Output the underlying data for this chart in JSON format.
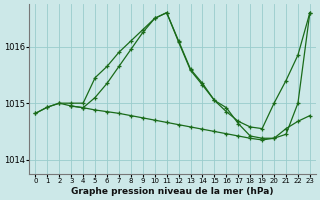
{
  "xlabel": "Graphe pression niveau de la mer (hPa)",
  "xlim": [
    -0.5,
    23.5
  ],
  "ylim": [
    1013.75,
    1016.75
  ],
  "yticks": [
    1014,
    1015,
    1016
  ],
  "xticks": [
    0,
    1,
    2,
    3,
    4,
    5,
    6,
    7,
    8,
    9,
    10,
    11,
    12,
    13,
    14,
    15,
    16,
    17,
    18,
    19,
    20,
    21,
    22,
    23
  ],
  "bg_color": "#cce8e8",
  "grid_color": "#99cccc",
  "line_color": "#1a6b1a",
  "line1_x": [
    0,
    1,
    2,
    3,
    4,
    5,
    6,
    7,
    8,
    9,
    10,
    11,
    12,
    13,
    14,
    15,
    16,
    17,
    18,
    19,
    20,
    21,
    22,
    23
  ],
  "line1_y": [
    1014.82,
    1014.93,
    1015.0,
    1015.0,
    1015.0,
    1015.45,
    1015.65,
    1015.9,
    1016.1,
    1016.3,
    1016.5,
    1016.6,
    1016.1,
    1015.6,
    1015.35,
    1015.05,
    1014.85,
    1014.68,
    1014.58,
    1014.55,
    1015.0,
    1015.4,
    1015.85,
    1016.6
  ],
  "line2_x": [
    0,
    1,
    2,
    3,
    4,
    5,
    6,
    7,
    8,
    9,
    10,
    11,
    12,
    13,
    14,
    15,
    16,
    17,
    18,
    19,
    20,
    21,
    22,
    23
  ],
  "line2_y": [
    1014.82,
    1014.93,
    1015.0,
    1014.95,
    1014.92,
    1014.88,
    1014.85,
    1014.82,
    1014.78,
    1014.74,
    1014.7,
    1014.66,
    1014.62,
    1014.58,
    1014.54,
    1014.5,
    1014.46,
    1014.42,
    1014.38,
    1014.35,
    1014.38,
    1014.55,
    1014.68,
    1014.78
  ],
  "line3_x": [
    3,
    4,
    5,
    6,
    7,
    8,
    9,
    10,
    11,
    12,
    13,
    14,
    15,
    16,
    17,
    18,
    19,
    20,
    21,
    22,
    23
  ],
  "line3_y": [
    1014.95,
    1014.92,
    1015.1,
    1015.35,
    1015.65,
    1015.95,
    1016.25,
    1016.5,
    1016.6,
    1016.08,
    1015.58,
    1015.32,
    1015.05,
    1014.92,
    1014.64,
    1014.42,
    1014.38,
    1014.38,
    1014.45,
    1015.0,
    1016.6
  ]
}
